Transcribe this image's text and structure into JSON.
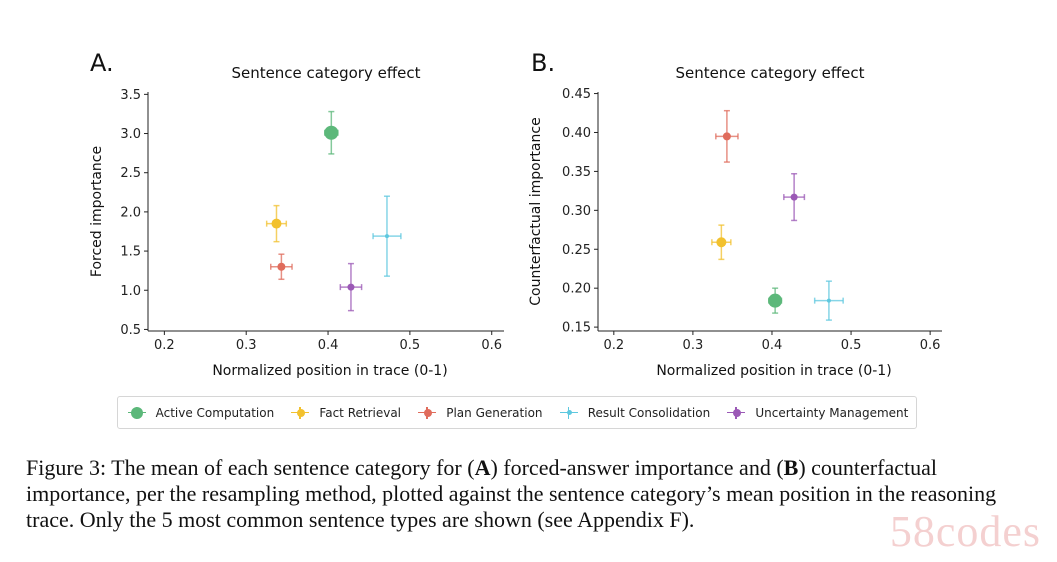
{
  "panels": [
    {
      "panel_label": "A.",
      "title": "Sentence category effect",
      "xlabel": "Normalized position in trace (0-1)",
      "ylabel": "Forced importance",
      "xticks": [
        "0.2",
        "0.3",
        "0.4",
        "0.5",
        "0.6"
      ],
      "yticks": [
        "0.5",
        "1.0",
        "1.5",
        "2.0",
        "2.5",
        "3.0",
        "3.5"
      ]
    },
    {
      "panel_label": "B.",
      "title": "Sentence category effect",
      "xlabel": "Normalized position in trace (0-1)",
      "ylabel": "Counterfactual importance",
      "xticks": [
        "0.2",
        "0.3",
        "0.4",
        "0.5",
        "0.6"
      ],
      "yticks": [
        "0.15",
        "0.20",
        "0.25",
        "0.30",
        "0.35",
        "0.40",
        "0.45"
      ]
    }
  ],
  "chart_data": [
    {
      "type": "scatter",
      "title": "Sentence category effect",
      "xlabel": "Normalized position in trace (0-1)",
      "ylabel": "Forced importance",
      "xlim": [
        0.18,
        0.615
      ],
      "ylim": [
        0.48,
        3.53
      ],
      "xticks": [
        0.2,
        0.3,
        0.4,
        0.5,
        0.6
      ],
      "yticks": [
        0.5,
        1.0,
        1.5,
        2.0,
        2.5,
        3.0,
        3.5
      ],
      "grid": false,
      "series": [
        {
          "name": "Active Computation",
          "color": "#5cb87a",
          "size": 7,
          "x": 0.404,
          "y": 3.01,
          "xerr": 0.008,
          "yerr": 0.27
        },
        {
          "name": "Fact Retrieval",
          "color": "#f2c12e",
          "size": 5,
          "x": 0.337,
          "y": 1.85,
          "xerr": 0.012,
          "yerr": 0.23
        },
        {
          "name": "Plan Generation",
          "color": "#e06c5c",
          "size": 4,
          "x": 0.343,
          "y": 1.3,
          "xerr": 0.013,
          "yerr": 0.16
        },
        {
          "name": "Result Consolidation",
          "color": "#5ec8df",
          "size": 2,
          "x": 0.472,
          "y": 1.69,
          "xerr": 0.017,
          "yerr": 0.51
        },
        {
          "name": "Uncertainty Management",
          "color": "#9b59b6",
          "size": 3.5,
          "x": 0.428,
          "y": 1.04,
          "xerr": 0.013,
          "yerr": 0.3
        }
      ]
    },
    {
      "type": "scatter",
      "title": "Sentence category effect",
      "xlabel": "Normalized position in trace (0-1)",
      "ylabel": "Counterfactual importance",
      "xlim": [
        0.18,
        0.615
      ],
      "ylim": [
        0.145,
        0.452
      ],
      "xticks": [
        0.2,
        0.3,
        0.4,
        0.5,
        0.6
      ],
      "yticks": [
        0.15,
        0.2,
        0.25,
        0.3,
        0.35,
        0.4,
        0.45
      ],
      "grid": false,
      "series": [
        {
          "name": "Active Computation",
          "color": "#5cb87a",
          "size": 7,
          "x": 0.404,
          "y": 0.184,
          "xerr": 0.008,
          "yerr": 0.016
        },
        {
          "name": "Fact Retrieval",
          "color": "#f2c12e",
          "size": 5,
          "x": 0.336,
          "y": 0.259,
          "xerr": 0.012,
          "yerr": 0.022
        },
        {
          "name": "Plan Generation",
          "color": "#e06c5c",
          "size": 4,
          "x": 0.343,
          "y": 0.395,
          "xerr": 0.014,
          "yerr": 0.033
        },
        {
          "name": "Result Consolidation",
          "color": "#5ec8df",
          "size": 2,
          "x": 0.472,
          "y": 0.184,
          "xerr": 0.018,
          "yerr": 0.025
        },
        {
          "name": "Uncertainty Management",
          "color": "#9b59b6",
          "size": 3.5,
          "x": 0.428,
          "y": 0.317,
          "xerr": 0.013,
          "yerr": 0.03
        }
      ]
    }
  ],
  "legend": {
    "placement": "bottom-center",
    "items": [
      {
        "label": "Active Computation",
        "color": "#5cb87a"
      },
      {
        "label": "Fact Retrieval",
        "color": "#f2c12e"
      },
      {
        "label": "Plan Generation",
        "color": "#e06c5c"
      },
      {
        "label": "Result Consolidation",
        "color": "#5ec8df"
      },
      {
        "label": "Uncertainty Management",
        "color": "#9b59b6"
      }
    ]
  },
  "caption": {
    "prefix": "Figure 3: The mean of each sentence category for (",
    "bold_a": "A",
    "middle": ") forced-answer importance and (",
    "bold_b": "B",
    "suffix": ") counterfactual importance, per the resampling method, plotted against the sentence category’s mean position in the reasoning trace. Only the 5 most common sentence types are shown (see Appendix F)."
  },
  "watermark": "58codes"
}
